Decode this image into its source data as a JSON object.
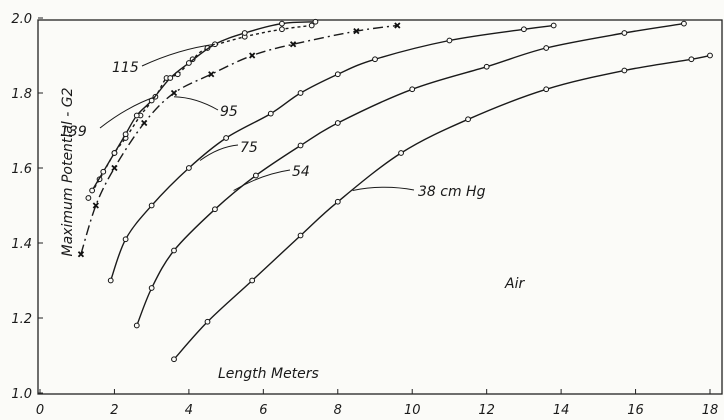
{
  "chart_data": {
    "type": "line",
    "title": "",
    "xlabel": "Length Meters",
    "ylabel": "Maximum Potential - G2",
    "xlim": [
      0,
      18
    ],
    "ylim": [
      1.0,
      2.0
    ],
    "x_ticks": [
      "0",
      "2",
      "4",
      "6",
      "8",
      "10",
      "12",
      "14",
      "16",
      "18"
    ],
    "y_ticks": [
      "1.0",
      "1.2",
      "1.4",
      "1.6",
      "1.8",
      "2.0"
    ],
    "annotation": "Air",
    "grid": false,
    "series": [
      {
        "name": "139",
        "style": "dotted",
        "marker": "circle",
        "x": [
          1.3,
          1.6,
          2.0,
          2.3,
          2.7,
          3.1,
          3.4,
          3.7,
          4.1,
          4.5,
          5.5,
          6.5,
          7.3
        ],
        "y": [
          1.52,
          1.57,
          1.64,
          1.68,
          1.74,
          1.79,
          1.84,
          1.85,
          1.89,
          1.92,
          1.95,
          1.97,
          1.98
        ]
      },
      {
        "name": "115",
        "style": "solid",
        "marker": "circle",
        "x": [
          1.4,
          1.7,
          2.0,
          2.3,
          2.6,
          3.0,
          3.5,
          4.0,
          4.7,
          5.5,
          6.5,
          7.4
        ],
        "y": [
          1.54,
          1.59,
          1.64,
          1.69,
          1.74,
          1.78,
          1.84,
          1.88,
          1.93,
          1.96,
          1.985,
          1.99
        ]
      },
      {
        "name": "95",
        "style": "dash-dot",
        "marker": "x",
        "x": [
          1.1,
          1.5,
          2.0,
          2.8,
          3.6,
          4.6,
          5.7,
          6.8,
          8.5,
          9.6
        ],
        "y": [
          1.37,
          1.5,
          1.6,
          1.72,
          1.8,
          1.85,
          1.9,
          1.93,
          1.965,
          1.98
        ]
      },
      {
        "name": "75",
        "style": "solid",
        "marker": "circle",
        "x": [
          1.9,
          2.3,
          3.0,
          4.0,
          5.0,
          6.2,
          7.0,
          8.0,
          9.0,
          11.0,
          13.0,
          13.8
        ],
        "y": [
          1.3,
          1.41,
          1.5,
          1.6,
          1.68,
          1.745,
          1.8,
          1.85,
          1.89,
          1.94,
          1.97,
          1.98
        ]
      },
      {
        "name": "54",
        "style": "solid",
        "marker": "circle",
        "x": [
          2.6,
          3.0,
          3.6,
          4.7,
          5.8,
          7.0,
          8.0,
          10.0,
          12.0,
          13.6,
          15.7,
          17.3
        ],
        "y": [
          1.18,
          1.28,
          1.38,
          1.49,
          1.58,
          1.66,
          1.72,
          1.81,
          1.87,
          1.92,
          1.96,
          1.985
        ]
      },
      {
        "name": "38 cm Hg",
        "style": "solid",
        "marker": "circle",
        "x": [
          3.6,
          4.5,
          5.7,
          7.0,
          8.0,
          9.7,
          11.5,
          13.6,
          15.7,
          17.5,
          18.0
        ],
        "y": [
          1.09,
          1.19,
          1.3,
          1.42,
          1.51,
          1.64,
          1.73,
          1.81,
          1.86,
          1.89,
          1.9
        ]
      }
    ]
  }
}
